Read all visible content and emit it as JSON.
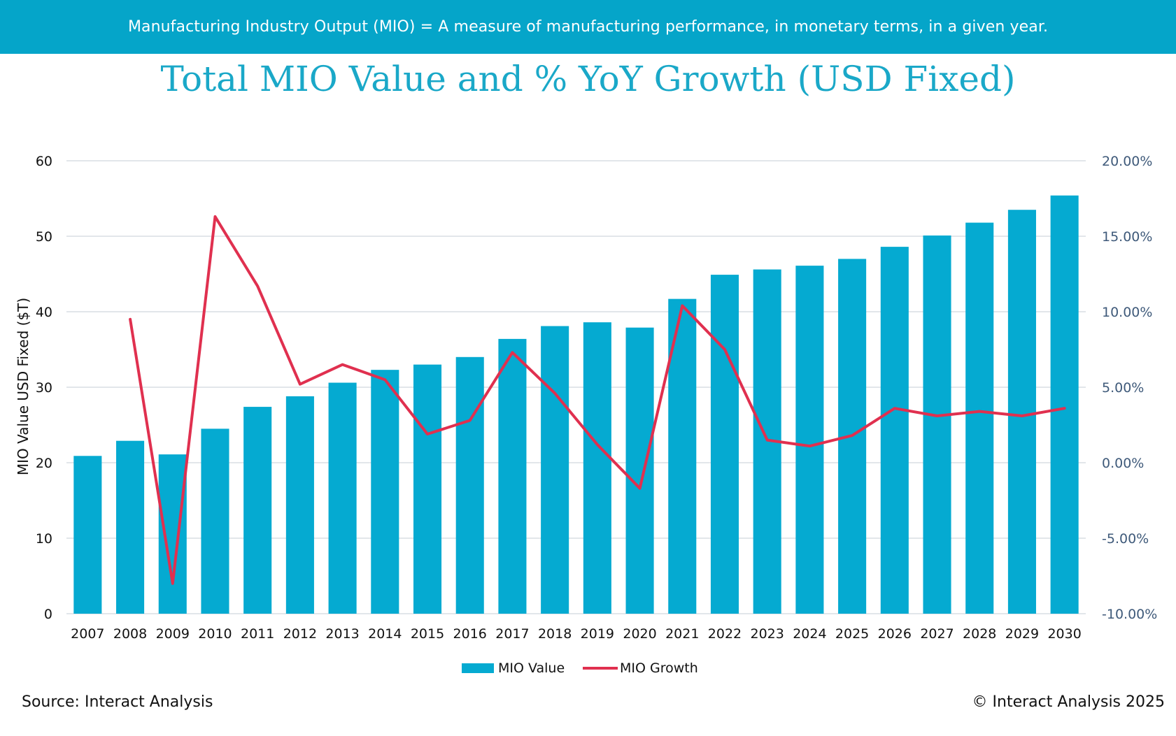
{
  "banner": {
    "text": "Manufacturing Industry Output (MIO) = A measure of manufacturing performance, in monetary terms, in a given year."
  },
  "footer": {
    "source": "Source: Interact Analysis",
    "copyright": "© Interact Analysis 2025"
  },
  "colors": {
    "banner": "#05a5c9",
    "bar": "#05aad1",
    "line": "#e0304f",
    "title": "#1aa8c8",
    "rightAxis": "#3f5a7a",
    "grid": "#d9dee4"
  },
  "chart_data": {
    "type": "bar+line",
    "title": "Total MIO Value and % YoY Growth (USD Fixed)",
    "ylabel": "MIO Value USD Fixed ($T)",
    "ylim": [
      0,
      60
    ],
    "y_ticks": [
      "0",
      "10",
      "20",
      "30",
      "40",
      "50",
      "60"
    ],
    "y2lim": [
      -10,
      20
    ],
    "y2_ticks": [
      "-10.00%",
      "-5.00%",
      "0.00%",
      "5.00%",
      "10.00%",
      "15.00%",
      "20.00%"
    ],
    "categories": [
      "2007",
      "2008",
      "2009",
      "2010",
      "2011",
      "2012",
      "2013",
      "2014",
      "2015",
      "2016",
      "2017",
      "2018",
      "2019",
      "2020",
      "2021",
      "2022",
      "2023",
      "2024",
      "2025",
      "2026",
      "2027",
      "2028",
      "2029",
      "2030"
    ],
    "series": [
      {
        "name": "MIO Value",
        "type": "bar",
        "axis": "left",
        "values": [
          20.9,
          22.9,
          21.1,
          24.5,
          27.4,
          28.8,
          30.6,
          32.3,
          33.0,
          34.0,
          36.4,
          38.1,
          38.6,
          37.9,
          41.7,
          44.9,
          45.6,
          46.1,
          47.0,
          48.6,
          50.1,
          51.8,
          53.5,
          55.4
        ]
      },
      {
        "name": "MIO Growth",
        "type": "line",
        "axis": "right",
        "values": [
          null,
          9.5,
          -8.0,
          16.3,
          11.7,
          5.2,
          6.5,
          5.5,
          1.9,
          2.8,
          7.3,
          4.6,
          1.2,
          -1.7,
          10.4,
          7.5,
          1.5,
          1.1,
          1.8,
          3.6,
          3.1,
          3.4,
          3.1,
          3.6
        ]
      }
    ],
    "legend": [
      "MIO Value",
      "MIO Growth"
    ],
    "legend_position": "bottom-center"
  }
}
